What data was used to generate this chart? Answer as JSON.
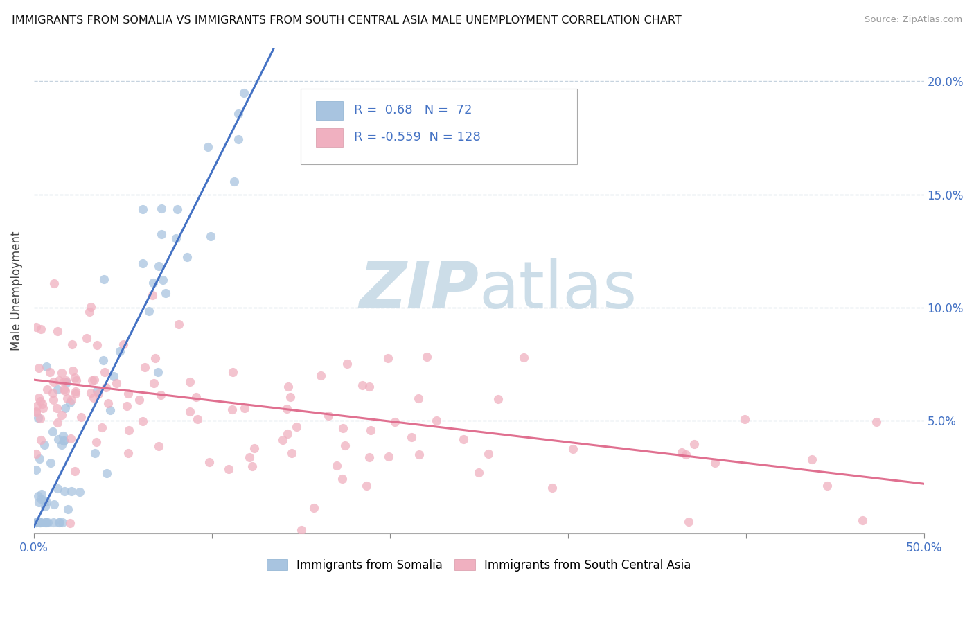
{
  "title": "IMMIGRANTS FROM SOMALIA VS IMMIGRANTS FROM SOUTH CENTRAL ASIA MALE UNEMPLOYMENT CORRELATION CHART",
  "source": "Source: ZipAtlas.com",
  "ylabel": "Male Unemployment",
  "xlim": [
    0,
    0.5
  ],
  "ylim": [
    0,
    0.215
  ],
  "somalia_R": 0.68,
  "somalia_N": 72,
  "sca_R": -0.559,
  "sca_N": 128,
  "somalia_line_color": "#4472c4",
  "sca_line_color": "#e07090",
  "watermark_zip": "ZIP",
  "watermark_atlas": "atlas",
  "watermark_color": "#ccdde8",
  "legend_R_color": "#4472c4",
  "somalia_dot_color": "#a8c4e0",
  "sca_dot_color": "#f0b0c0",
  "ytick_positions": [
    0.05,
    0.1,
    0.15,
    0.2
  ],
  "ytick_labels": [
    "5.0%",
    "10.0%",
    "15.0%",
    "20.0%"
  ],
  "blue_line_x0": 0.0,
  "blue_line_y0": 0.003,
  "blue_line_x1": 0.135,
  "blue_line_y1": 0.215,
  "pink_line_x0": 0.0,
  "pink_line_y0": 0.068,
  "pink_line_x1": 0.5,
  "pink_line_y1": 0.022
}
